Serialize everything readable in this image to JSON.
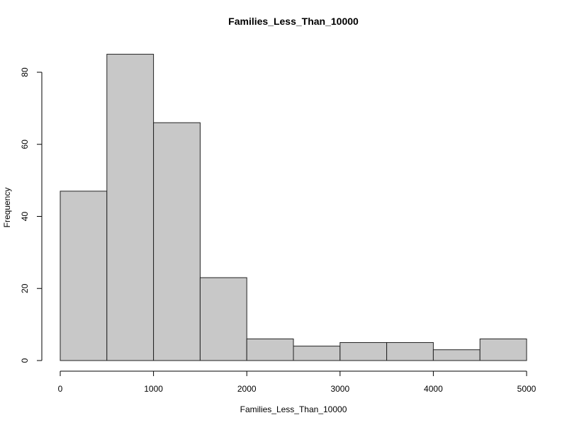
{
  "chart_data": {
    "type": "bar",
    "title": "Families_Less_Than_10000",
    "xlabel": "Families_Less_Than_10000",
    "ylabel": "Frequency",
    "bins": [
      {
        "start": 0,
        "end": 500,
        "count": 47
      },
      {
        "start": 500,
        "end": 1000,
        "count": 85
      },
      {
        "start": 1000,
        "end": 1500,
        "count": 66
      },
      {
        "start": 1500,
        "end": 2000,
        "count": 23
      },
      {
        "start": 2000,
        "end": 2500,
        "count": 6
      },
      {
        "start": 2500,
        "end": 3000,
        "count": 4
      },
      {
        "start": 3000,
        "end": 3500,
        "count": 5
      },
      {
        "start": 3500,
        "end": 4000,
        "count": 5
      },
      {
        "start": 4000,
        "end": 4500,
        "count": 3
      },
      {
        "start": 4500,
        "end": 5000,
        "count": 6
      }
    ],
    "xlim": [
      0,
      5000
    ],
    "ylim": [
      0,
      80
    ],
    "xticks": [
      0,
      1000,
      2000,
      3000,
      4000,
      5000
    ],
    "yticks": [
      0,
      20,
      40,
      60,
      80
    ],
    "grid": false,
    "bar_color": "#c8c8c8",
    "edge_color": "#222222"
  }
}
